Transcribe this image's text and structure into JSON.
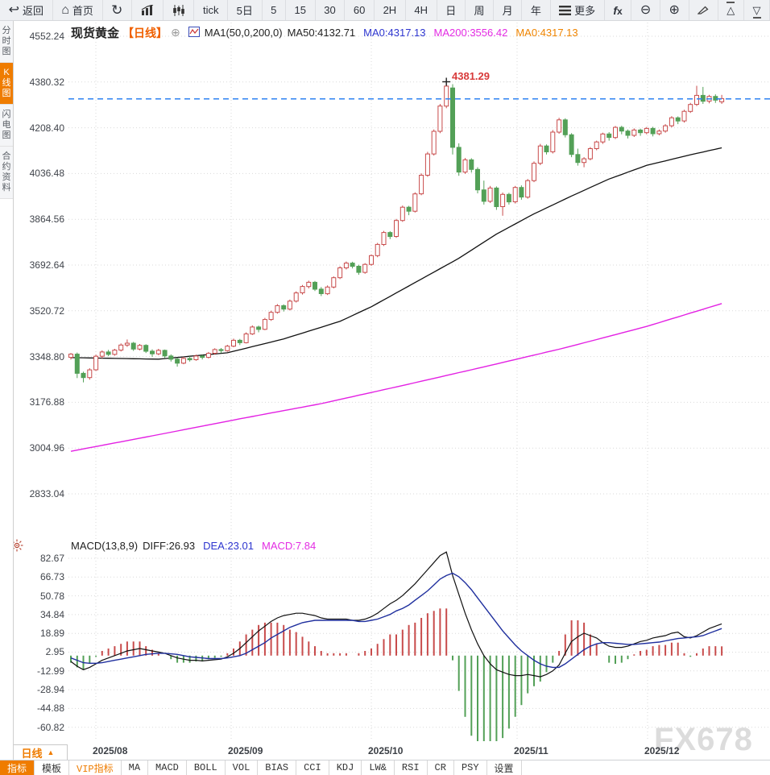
{
  "toolbar": {
    "items": [
      {
        "name": "back-button",
        "icon": "back-arrow",
        "label": "返回"
      },
      {
        "name": "home-button",
        "icon": "home",
        "label": "首页"
      },
      {
        "name": "refresh-button",
        "icon": "refresh",
        "label": ""
      },
      {
        "name": "area-chart-button",
        "icon": "trend-chart",
        "label": ""
      },
      {
        "name": "candle-chart-button",
        "icon": "candle",
        "label": ""
      },
      {
        "name": "interval-tick-button",
        "icon": "",
        "label": "tick"
      },
      {
        "name": "interval-5d-button",
        "icon": "",
        "label": "5日"
      },
      {
        "name": "interval-5m-button",
        "icon": "",
        "label": "5"
      },
      {
        "name": "interval-15m-button",
        "icon": "",
        "label": "15"
      },
      {
        "name": "interval-30m-button",
        "icon": "",
        "label": "30"
      },
      {
        "name": "interval-60m-button",
        "icon": "",
        "label": "60"
      },
      {
        "name": "interval-2h-button",
        "icon": "",
        "label": "2H"
      },
      {
        "name": "interval-4h-button",
        "icon": "",
        "label": "4H"
      },
      {
        "name": "interval-day-button",
        "icon": "",
        "label": "日"
      },
      {
        "name": "interval-week-button",
        "icon": "",
        "label": "周"
      },
      {
        "name": "interval-month-button",
        "icon": "",
        "label": "月"
      },
      {
        "name": "interval-year-button",
        "icon": "",
        "label": "年"
      },
      {
        "name": "more-button",
        "icon": "menu",
        "label": "更多"
      },
      {
        "name": "formula-button",
        "icon": "fx",
        "label": ""
      },
      {
        "name": "zoom-out-button",
        "icon": "zoom-out",
        "label": ""
      },
      {
        "name": "zoom-in-button",
        "icon": "zoom-in",
        "label": ""
      },
      {
        "name": "draw-button",
        "icon": "pencil",
        "label": ""
      },
      {
        "name": "panel-up-button",
        "icon": "panel-up",
        "label": ""
      },
      {
        "name": "panel-down-button",
        "icon": "panel-down",
        "label": ""
      }
    ]
  },
  "sidebar": {
    "tabs": [
      {
        "label": "分时图",
        "active": false
      },
      {
        "label": "K线图",
        "active": true
      },
      {
        "label": "闪电图",
        "active": false
      },
      {
        "label": "合约资料",
        "active": false
      }
    ]
  },
  "chart_header": {
    "symbol": "现货黄金",
    "period_tag": "【日线】",
    "ma_settings": "MA1(50,0,200,0)",
    "ma50_label": "MA50:4132.71",
    "ma0_blue_label": "MA0:4317.13",
    "ma200_label": "MA200:3556.42",
    "ma0_orange_label": "MA0:4317.13"
  },
  "macd_header": {
    "title": "MACD(13,8,9)",
    "diff_label": "DIFF:26.93",
    "dea_label": "DEA:23.01",
    "macd_label": "MACD:7.84"
  },
  "annotation": {
    "peak_price": "4381.29"
  },
  "period_selector": {
    "label": "日线",
    "arrow": "▲"
  },
  "bottom_tabs": {
    "items": [
      {
        "name": "tab-indicators",
        "label": "指标",
        "active": true,
        "vip": false
      },
      {
        "name": "tab-templates",
        "label": "模板",
        "active": false,
        "vip": false
      },
      {
        "name": "tab-vip-indicators",
        "label": "VIP指标",
        "active": false,
        "vip": true
      },
      {
        "name": "tab-ma",
        "label": "MA",
        "active": false,
        "vip": false
      },
      {
        "name": "tab-macd",
        "label": "MACD",
        "active": false,
        "vip": false
      },
      {
        "name": "tab-boll",
        "label": "BOLL",
        "active": false,
        "vip": false
      },
      {
        "name": "tab-vol",
        "label": "VOL",
        "active": false,
        "vip": false
      },
      {
        "name": "tab-bias",
        "label": "BIAS",
        "active": false,
        "vip": false
      },
      {
        "name": "tab-cci",
        "label": "CCI",
        "active": false,
        "vip": false
      },
      {
        "name": "tab-kdj",
        "label": "KDJ",
        "active": false,
        "vip": false
      },
      {
        "name": "tab-lw",
        "label": "LW&",
        "active": false,
        "vip": false
      },
      {
        "name": "tab-rsi",
        "label": "RSI",
        "active": false,
        "vip": false
      },
      {
        "name": "tab-cr",
        "label": "CR",
        "active": false,
        "vip": false
      },
      {
        "name": "tab-psy",
        "label": "PSY",
        "active": false,
        "vip": false
      },
      {
        "name": "tab-settings",
        "label": "设置",
        "active": false,
        "vip": false
      }
    ]
  },
  "watermark": "FX678",
  "colors": {
    "accent_orange": "#ef7c00",
    "up_red": "#c84b4b",
    "down_green": "#53a057",
    "ma50_black": "#111111",
    "ma200_magenta": "#e321e3",
    "dea_blue": "#1f2f9e",
    "diff_black": "#111111",
    "price_line_blue": "#2e83f2",
    "legend_blue": "#2d35cf",
    "legend_magenta": "#e32ce3",
    "legend_orange": "#ef8400",
    "annotation_red": "#d83a3a",
    "grid": "#d9d9d9"
  },
  "chart_data": {
    "type": "candlestick+macd",
    "title": "现货黄金 日线 (Spot Gold Daily)",
    "price_axis": {
      "ticks": [
        4552.24,
        4380.32,
        4208.4,
        4036.48,
        3864.56,
        3692.64,
        3520.72,
        3348.8,
        3176.88,
        3004.96,
        2833.04
      ]
    },
    "macd_axis": {
      "ticks": [
        82.67,
        66.73,
        50.78,
        34.84,
        18.89,
        2.95,
        -12.99,
        -28.94,
        -44.88,
        -60.82
      ]
    },
    "x_axis": {
      "labels": [
        "2025/08",
        "2025/09",
        "2025/10",
        "2025/11",
        "2025/12"
      ]
    },
    "current_price": 4317.13,
    "peak_price": 4381.29,
    "ma50_last": 4132.71,
    "ma200_last": 3556.42,
    "macd_values": {
      "diff": 26.93,
      "dea": 23.01,
      "macd": 7.84
    },
    "candles": [
      [
        3346,
        3362,
        3338,
        3358
      ],
      [
        3358,
        3364,
        3268,
        3286
      ],
      [
        3286,
        3292,
        3252,
        3270
      ],
      [
        3270,
        3305,
        3262,
        3299
      ],
      [
        3299,
        3356,
        3295,
        3350
      ],
      [
        3350,
        3372,
        3342,
        3366
      ],
      [
        3366,
        3374,
        3350,
        3357
      ],
      [
        3357,
        3378,
        3352,
        3373
      ],
      [
        3373,
        3398,
        3368,
        3392
      ],
      [
        3392,
        3413,
        3385,
        3399
      ],
      [
        3399,
        3404,
        3370,
        3377
      ],
      [
        3377,
        3396,
        3372,
        3391
      ],
      [
        3391,
        3395,
        3362,
        3369
      ],
      [
        3369,
        3376,
        3348,
        3359
      ],
      [
        3359,
        3378,
        3354,
        3372
      ],
      [
        3372,
        3375,
        3344,
        3351
      ],
      [
        3351,
        3357,
        3330,
        3339
      ],
      [
        3339,
        3344,
        3311,
        3324
      ],
      [
        3324,
        3348,
        3320,
        3342
      ],
      [
        3342,
        3350,
        3330,
        3337
      ],
      [
        3337,
        3356,
        3333,
        3351
      ],
      [
        3351,
        3355,
        3338,
        3346
      ],
      [
        3346,
        3366,
        3342,
        3361
      ],
      [
        3361,
        3380,
        3356,
        3375
      ],
      [
        3375,
        3381,
        3362,
        3371
      ],
      [
        3371,
        3393,
        3367,
        3388
      ],
      [
        3388,
        3416,
        3384,
        3410
      ],
      [
        3410,
        3415,
        3392,
        3401
      ],
      [
        3401,
        3440,
        3398,
        3434
      ],
      [
        3434,
        3466,
        3430,
        3460
      ],
      [
        3460,
        3465,
        3440,
        3451
      ],
      [
        3451,
        3494,
        3448,
        3488
      ],
      [
        3488,
        3521,
        3483,
        3515
      ],
      [
        3515,
        3546,
        3510,
        3540
      ],
      [
        3540,
        3545,
        3518,
        3527
      ],
      [
        3527,
        3563,
        3522,
        3557
      ],
      [
        3557,
        3594,
        3552,
        3588
      ],
      [
        3588,
        3618,
        3582,
        3612
      ],
      [
        3612,
        3634,
        3605,
        3628
      ],
      [
        3628,
        3633,
        3595,
        3602
      ],
      [
        3602,
        3610,
        3576,
        3585
      ],
      [
        3585,
        3616,
        3580,
        3610
      ],
      [
        3610,
        3650,
        3605,
        3645
      ],
      [
        3645,
        3688,
        3640,
        3682
      ],
      [
        3682,
        3706,
        3676,
        3700
      ],
      [
        3700,
        3705,
        3680,
        3688
      ],
      [
        3688,
        3694,
        3656,
        3665
      ],
      [
        3665,
        3700,
        3660,
        3695
      ],
      [
        3695,
        3733,
        3690,
        3728
      ],
      [
        3728,
        3776,
        3722,
        3770
      ],
      [
        3770,
        3821,
        3764,
        3815
      ],
      [
        3815,
        3820,
        3790,
        3800
      ],
      [
        3800,
        3866,
        3795,
        3860
      ],
      [
        3860,
        3916,
        3855,
        3910
      ],
      [
        3910,
        3915,
        3880,
        3895
      ],
      [
        3895,
        3966,
        3890,
        3960
      ],
      [
        3960,
        4037,
        3955,
        4030
      ],
      [
        4030,
        4118,
        4024,
        4110
      ],
      [
        4110,
        4202,
        4104,
        4195
      ],
      [
        4195,
        4298,
        4188,
        4290
      ],
      [
        4290,
        4381.29,
        4282,
        4365
      ],
      [
        4358,
        4372,
        4108,
        4135
      ],
      [
        4135,
        4150,
        4028,
        4042
      ],
      [
        4042,
        4095,
        4035,
        4088
      ],
      [
        4088,
        4094,
        4040,
        4052
      ],
      [
        4052,
        4060,
        3962,
        3975
      ],
      [
        3975,
        4010,
        3920,
        3932
      ],
      [
        3932,
        3990,
        3926,
        3982
      ],
      [
        3982,
        3988,
        3900,
        3912
      ],
      [
        3912,
        3965,
        3878,
        3958
      ],
      [
        3958,
        3964,
        3920,
        3930
      ],
      [
        3930,
        3990,
        3924,
        3984
      ],
      [
        3984,
        3992,
        3938,
        3948
      ],
      [
        3948,
        4016,
        3942,
        4010
      ],
      [
        4010,
        4082,
        4004,
        4075
      ],
      [
        4075,
        4148,
        4068,
        4140
      ],
      [
        4140,
        4146,
        4108,
        4118
      ],
      [
        4118,
        4200,
        4112,
        4192
      ],
      [
        4192,
        4246,
        4186,
        4238
      ],
      [
        4238,
        4244,
        4172,
        4182
      ],
      [
        4182,
        4188,
        4098,
        4108
      ],
      [
        4108,
        4130,
        4066,
        4078
      ],
      [
        4078,
        4098,
        4060,
        4092
      ],
      [
        4092,
        4136,
        4086,
        4130
      ],
      [
        4130,
        4160,
        4124,
        4155
      ],
      [
        4155,
        4190,
        4148,
        4185
      ],
      [
        4185,
        4192,
        4160,
        4172
      ],
      [
        4172,
        4215,
        4166,
        4210
      ],
      [
        4210,
        4216,
        4184,
        4196
      ],
      [
        4196,
        4202,
        4168,
        4180
      ],
      [
        4180,
        4206,
        4174,
        4200
      ],
      [
        4200,
        4205,
        4178,
        4190
      ],
      [
        4190,
        4211,
        4184,
        4206
      ],
      [
        4206,
        4212,
        4176,
        4186
      ],
      [
        4186,
        4202,
        4180,
        4196
      ],
      [
        4196,
        4222,
        4190,
        4216
      ],
      [
        4216,
        4252,
        4210,
        4246
      ],
      [
        4246,
        4251,
        4222,
        4234
      ],
      [
        4234,
        4276,
        4228,
        4270
      ],
      [
        4270,
        4302,
        4264,
        4296
      ],
      [
        4296,
        4366,
        4290,
        4330
      ],
      [
        4330,
        4362,
        4298,
        4308
      ],
      [
        4308,
        4332,
        4300,
        4326
      ],
      [
        4326,
        4334,
        4302,
        4312
      ],
      [
        4306,
        4332,
        4298,
        4318
      ]
    ],
    "ma50_anchors": [
      [
        0,
        3345
      ],
      [
        14,
        3339
      ],
      [
        25,
        3363
      ],
      [
        34,
        3415
      ],
      [
        43,
        3481
      ],
      [
        48,
        3536
      ],
      [
        55,
        3627
      ],
      [
        62,
        3718
      ],
      [
        68,
        3809
      ],
      [
        74,
        3885
      ],
      [
        80,
        3952
      ],
      [
        86,
        4016
      ],
      [
        92,
        4067
      ],
      [
        99,
        4107
      ],
      [
        104,
        4133
      ]
    ],
    "ma200_anchors": [
      [
        0,
        2993
      ],
      [
        13,
        3051
      ],
      [
        27,
        3115
      ],
      [
        40,
        3172
      ],
      [
        53,
        3240
      ],
      [
        66,
        3310
      ],
      [
        79,
        3382
      ],
      [
        92,
        3462
      ],
      [
        104,
        3548
      ]
    ],
    "diff": [
      -5,
      -9,
      -12,
      -10,
      -7,
      -4,
      -2,
      0,
      2,
      4,
      5,
      6,
      5,
      4,
      3,
      2,
      0,
      -2,
      -3,
      -4,
      -4,
      -4.5,
      -4,
      -3.5,
      -3,
      -1,
      2,
      6,
      11,
      16,
      21,
      25,
      29,
      32,
      34,
      35,
      36,
      36,
      35,
      34,
      32,
      31,
      31,
      31,
      31,
      30,
      30,
      31,
      33,
      36,
      40,
      44,
      47,
      51,
      56,
      61,
      67,
      73,
      79,
      85,
      88,
      68,
      52,
      36,
      22,
      10,
      0,
      -7,
      -12,
      -14,
      -16,
      -17,
      -17,
      -16,
      -17,
      -18,
      -16,
      -13,
      -8,
      2,
      12,
      16,
      19,
      17,
      15,
      11,
      8,
      7,
      7,
      8,
      10,
      12,
      13,
      15,
      16,
      17,
      19,
      20,
      16,
      15,
      17,
      20,
      23,
      25,
      26.93
    ],
    "dea": [
      -2,
      -4,
      -6,
      -6.5,
      -6.5,
      -6,
      -5,
      -4,
      -3,
      -2,
      -1,
      0,
      1,
      1.5,
      2,
      2,
      1.5,
      1,
      0,
      -1,
      -1.5,
      -2,
      -2.5,
      -2.5,
      -2.5,
      -2,
      -1,
      0,
      2,
      5,
      8,
      11,
      15,
      18,
      21,
      24,
      26,
      28,
      29,
      30,
      30,
      30,
      30,
      30,
      30,
      30,
      29,
      29,
      30,
      31,
      33,
      35,
      38,
      40,
      43,
      47,
      51,
      55,
      60,
      65,
      68,
      70,
      67,
      62,
      56,
      49,
      42,
      35,
      28,
      21,
      15,
      9,
      4,
      0,
      -4,
      -7,
      -9,
      -10,
      -10,
      -7,
      -3,
      1,
      5,
      8,
      10,
      11,
      11,
      10.5,
      10,
      9.5,
      9.5,
      10,
      10.5,
      11,
      11.5,
      12.5,
      13.5,
      14.5,
      15,
      15.5,
      16,
      17,
      19,
      21,
      23.01
    ],
    "histogram_formula": "2*(DIFF-DEA)"
  }
}
